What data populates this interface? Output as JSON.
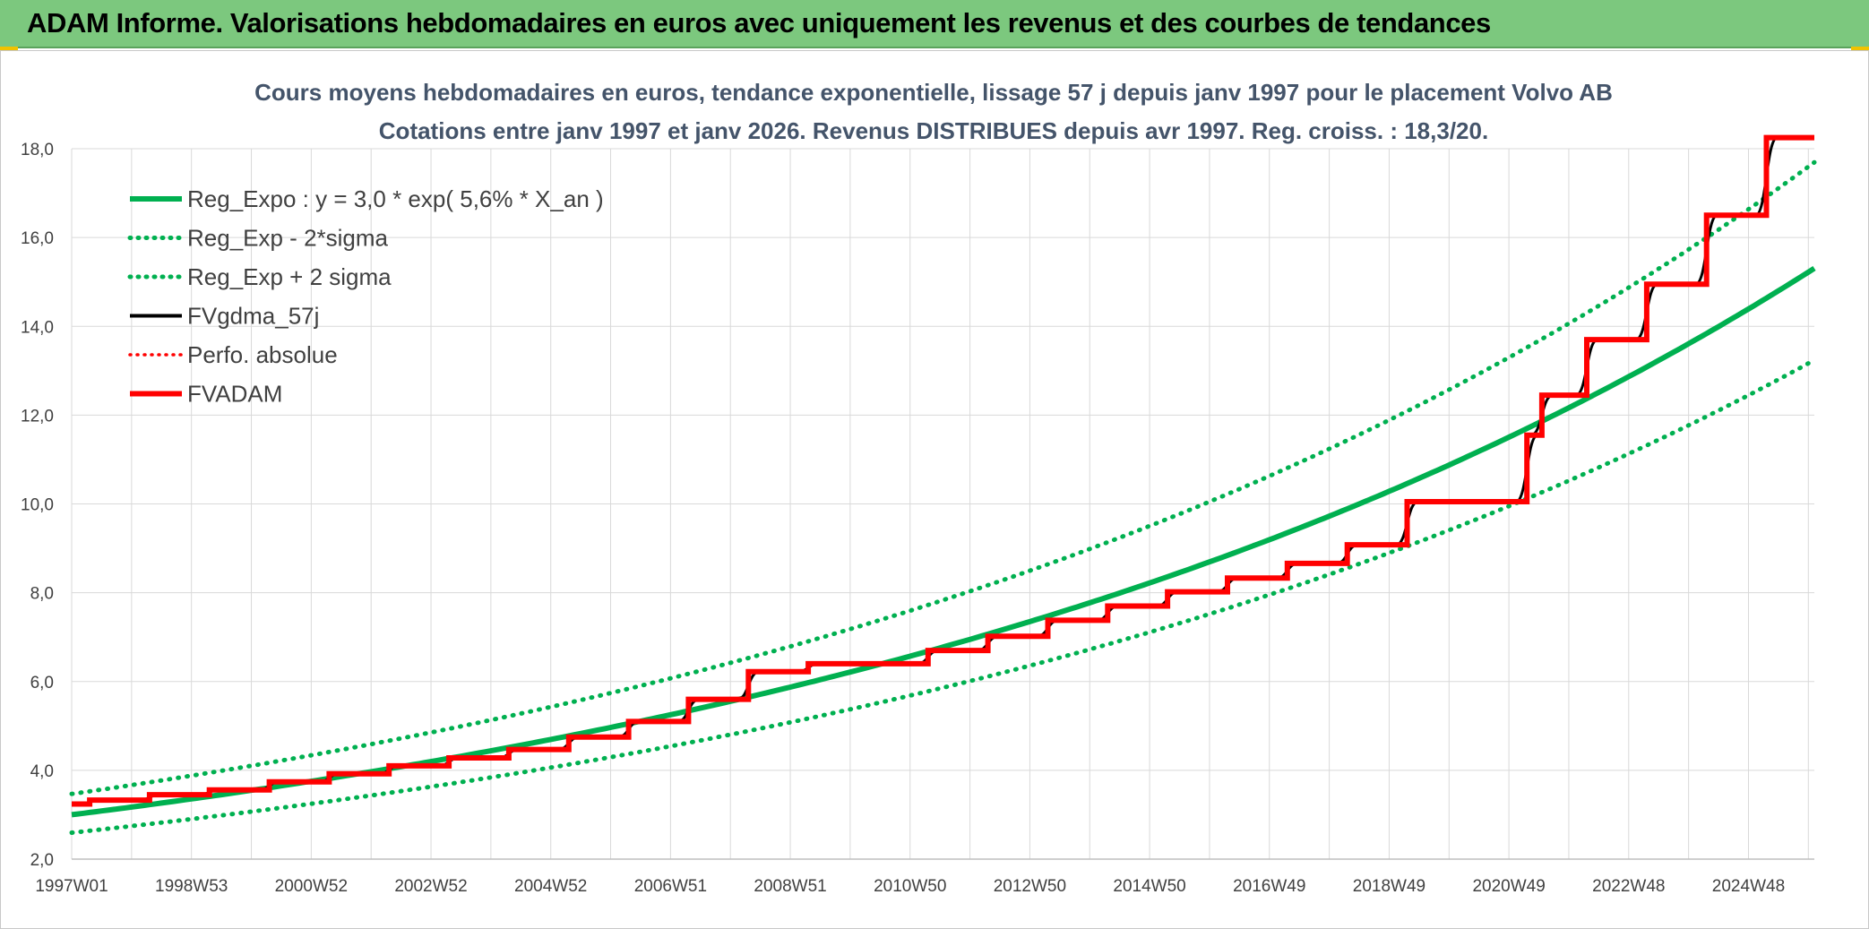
{
  "header": {
    "title": "ADAM Informe. Valorisations hebdomadaires en euros avec uniquement les revenus et des courbes de tendances"
  },
  "colors": {
    "header_bg": "#7cc87e",
    "green": "#00b050",
    "red": "#ff0000",
    "black": "#000000",
    "title_text": "#44546a",
    "grid": "#d9d9d9"
  },
  "chart_data": {
    "type": "line",
    "title": "Cours moyens hebdomadaires en euros, tendance exponentielle, lissage 57 j depuis janv 1997 pour le placement Volvo AB",
    "subtitle": "Cotations entre janv 1997 et janv 2026. Revenus DISTRIBUES depuis avr 1997. Reg. croiss. : 18,3/20.",
    "ylim": [
      2.0,
      18.0
    ],
    "y_ticks": [
      "2,0",
      "4,0",
      "6,0",
      "8,0",
      "10,0",
      "12,0",
      "14,0",
      "16,0",
      "18,0"
    ],
    "x_range": [
      1997.0,
      2026.1
    ],
    "x_ticks": [
      {
        "label": "1997W01",
        "x": 1997.0
      },
      {
        "label": "1998W53",
        "x": 1999.0
      },
      {
        "label": "2000W52",
        "x": 2001.0
      },
      {
        "label": "2002W52",
        "x": 2003.0
      },
      {
        "label": "2004W52",
        "x": 2005.0
      },
      {
        "label": "2006W51",
        "x": 2007.0
      },
      {
        "label": "2008W51",
        "x": 2009.0
      },
      {
        "label": "2010W50",
        "x": 2011.0
      },
      {
        "label": "2012W50",
        "x": 2013.0
      },
      {
        "label": "2014W50",
        "x": 2015.0
      },
      {
        "label": "2016W49",
        "x": 2017.0
      },
      {
        "label": "2018W49",
        "x": 2019.0
      },
      {
        "label": "2020W49",
        "x": 2021.0
      },
      {
        "label": "2022W48",
        "x": 2023.0
      },
      {
        "label": "2024W48",
        "x": 2025.0
      }
    ],
    "grid": true,
    "legend_position": "top-left",
    "series": [
      {
        "name": "Reg_Expo : y = 3,0 * exp( 5,6% *  X_an )",
        "style": "solid",
        "color": "#00b050",
        "formula": {
          "a": 3.0,
          "b": 0.056,
          "factor": 1.0
        }
      },
      {
        "name": "Reg_Exp - 2*sigma",
        "style": "dotted",
        "color": "#00b050",
        "formula": {
          "a": 3.0,
          "b": 0.056,
          "factor": 0.865
        }
      },
      {
        "name": "Reg_Exp + 2 sigma",
        "style": "dotted",
        "color": "#00b050",
        "formula": {
          "a": 3.0,
          "b": 0.056,
          "factor": 1.156
        }
      },
      {
        "name": "FVgdma_57j",
        "style": "solid-thin",
        "color": "#000000"
      },
      {
        "name": "Perfo. absolue",
        "style": "dotted",
        "color": "#ff0000"
      },
      {
        "name": "FVADAM",
        "style": "step",
        "color": "#ff0000"
      }
    ],
    "fvadam_steps": [
      {
        "x": 1997.0,
        "y": 3.24
      },
      {
        "x": 1997.3,
        "y": 3.33
      },
      {
        "x": 1998.3,
        "y": 3.45
      },
      {
        "x": 1999.3,
        "y": 3.56
      },
      {
        "x": 2000.3,
        "y": 3.74
      },
      {
        "x": 2001.3,
        "y": 3.92
      },
      {
        "x": 2002.3,
        "y": 4.1
      },
      {
        "x": 2003.3,
        "y": 4.28
      },
      {
        "x": 2004.3,
        "y": 4.47
      },
      {
        "x": 2005.3,
        "y": 4.75
      },
      {
        "x": 2006.3,
        "y": 5.1
      },
      {
        "x": 2007.3,
        "y": 5.6
      },
      {
        "x": 2008.3,
        "y": 6.22
      },
      {
        "x": 2009.3,
        "y": 6.4
      },
      {
        "x": 2011.3,
        "y": 6.7
      },
      {
        "x": 2012.3,
        "y": 7.02
      },
      {
        "x": 2013.3,
        "y": 7.38
      },
      {
        "x": 2014.3,
        "y": 7.7
      },
      {
        "x": 2015.3,
        "y": 8.02
      },
      {
        "x": 2016.3,
        "y": 8.33
      },
      {
        "x": 2017.3,
        "y": 8.66
      },
      {
        "x": 2018.3,
        "y": 9.08
      },
      {
        "x": 2019.3,
        "y": 10.05
      },
      {
        "x": 2021.3,
        "y": 11.55
      },
      {
        "x": 2021.55,
        "y": 12.45
      },
      {
        "x": 2022.3,
        "y": 13.7
      },
      {
        "x": 2023.3,
        "y": 14.95
      },
      {
        "x": 2024.3,
        "y": 16.5
      },
      {
        "x": 2025.3,
        "y": 18.25
      },
      {
        "x": 2026.1,
        "y": 18.25
      }
    ]
  }
}
